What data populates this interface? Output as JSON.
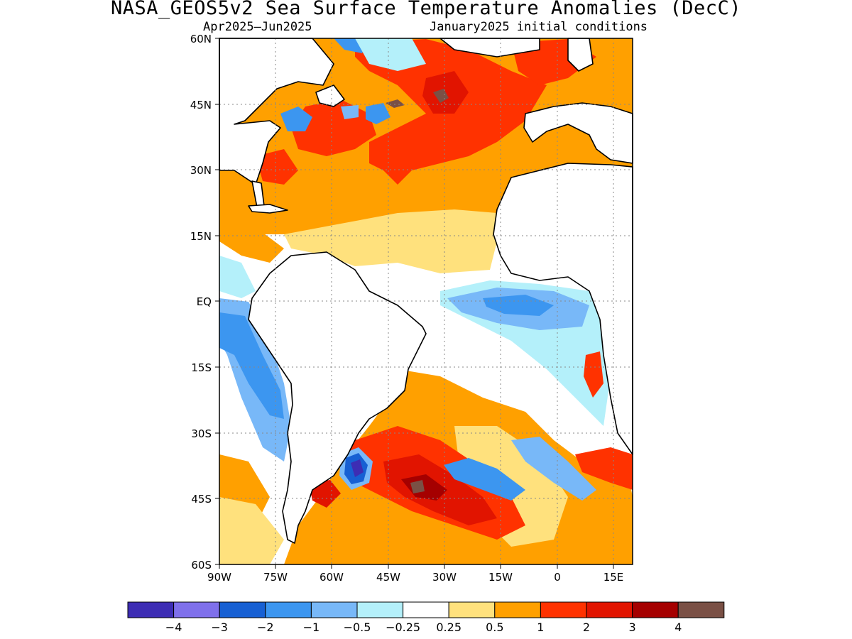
{
  "title": "NASA_GEOS5v2 Sea Surface Temperature Anomalies (DecC)",
  "subtitle_left": "Apr2025—Jun2025",
  "subtitle_right": "January2025 initial conditions",
  "map": {
    "lon_range": [
      -90,
      20
    ],
    "lat_range": [
      -60,
      60
    ],
    "x_ticks": [
      "90W",
      "75W",
      "60W",
      "45W",
      "30W",
      "15W",
      "0",
      "15E"
    ],
    "y_ticks": [
      "60N",
      "45N",
      "30N",
      "15N",
      "EQ",
      "15S",
      "30S",
      "45S",
      "60S"
    ],
    "gridlines": true
  },
  "colorbar": {
    "labels": [
      "−4",
      "−3",
      "−2",
      "−1",
      "−0.5",
      "−0.25",
      "0.25",
      "0.5",
      "1",
      "2",
      "3",
      "4"
    ],
    "colors": [
      "#3d2db4",
      "#7f70eb",
      "#1760d3",
      "#3c96f0",
      "#78b8f8",
      "#b4f0fa",
      "#ffffff",
      "#ffe17d",
      "#ffa000",
      "#ff3200",
      "#e11400",
      "#a50000",
      "#7a5045"
    ]
  },
  "anomaly_colors": {
    "neg4": "#3d2db4",
    "neg3": "#7f70eb",
    "neg2": "#1760d3",
    "neg1": "#3c96f0",
    "neg05": "#78b8f8",
    "neg025": "#b4f0fa",
    "zero": "#ffffff",
    "pos025": "#ffe17d",
    "pos05": "#ffa000",
    "pos1": "#ff3200",
    "pos2": "#e11400",
    "pos3": "#a50000",
    "pos4": "#7a5045"
  }
}
